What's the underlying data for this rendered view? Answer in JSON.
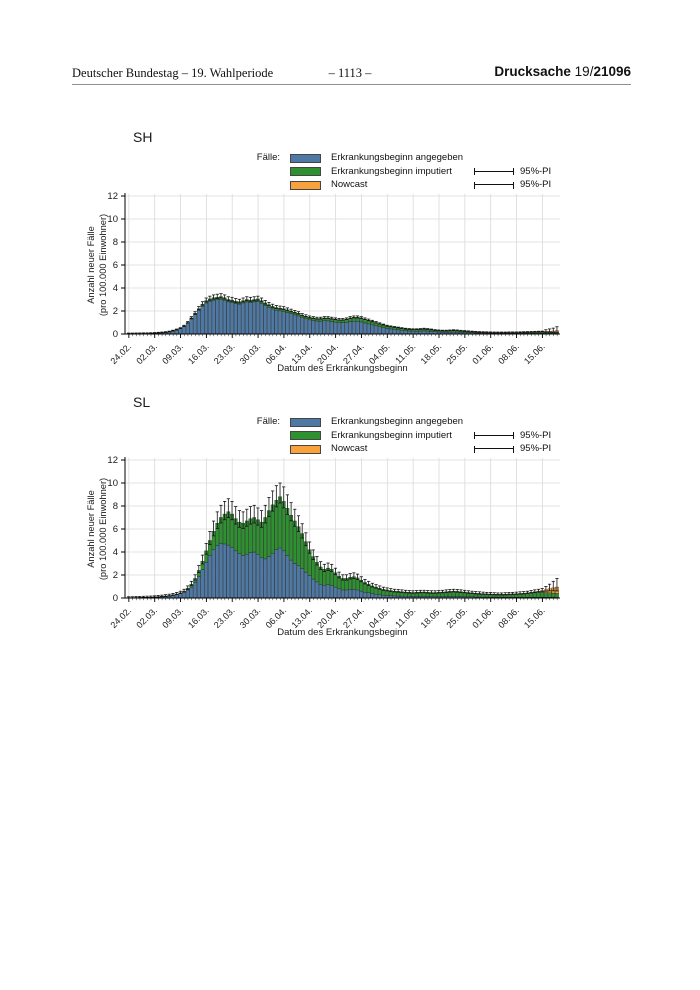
{
  "header": {
    "left": "Deutscher Bundestag – 19. Wahlperiode",
    "center": "– 1113 –",
    "right_label": "Drucksache",
    "right_term": "19/",
    "right_number": "21096"
  },
  "chart_data": [
    {
      "id": "SH",
      "title": "SH",
      "type": "bar",
      "legend": {
        "title": "Fälle:",
        "items": [
          {
            "key": "blue",
            "label": "Erkrankungsbeginn angegeben"
          },
          {
            "key": "green",
            "label": "Erkrankungsbeginn imputiert"
          },
          {
            "key": "orange",
            "label": "Nowcast"
          }
        ],
        "pi_label": "95%-PI"
      },
      "ylabel_line1": "Anzahl neuer Fälle",
      "ylabel_line2": "(pro 100.000 Einwohner)",
      "xlabel": "Datum des Erkrankungsbeginn",
      "ylim": [
        0,
        12
      ],
      "yticks": [
        0,
        2,
        4,
        6,
        8,
        10,
        12
      ],
      "xticks": {
        "labels": [
          "24.02.",
          "02.03.",
          "09.03.",
          "16.03.",
          "23.03.",
          "30.03.",
          "06.04.",
          "13.04.",
          "20.04.",
          "27.04.",
          "04.05.",
          "11.05.",
          "18.05.",
          "25.05.",
          "01.06.",
          "08.06.",
          "15.06."
        ],
        "day_index": [
          0,
          7,
          14,
          21,
          28,
          35,
          42,
          49,
          56,
          63,
          70,
          77,
          84,
          91,
          98,
          105,
          112
        ]
      },
      "colors": {
        "blue": "#4e79a4",
        "green": "#2e9130",
        "orange": "#f9a23b"
      },
      "series": {
        "blue": [
          0.03,
          0.03,
          0.04,
          0.04,
          0.05,
          0.05,
          0.06,
          0.07,
          0.09,
          0.11,
          0.14,
          0.19,
          0.26,
          0.35,
          0.46,
          0.65,
          0.93,
          1.3,
          1.67,
          2.05,
          2.42,
          2.7,
          2.84,
          2.93,
          2.98,
          3.02,
          2.93,
          2.79,
          2.74,
          2.65,
          2.6,
          2.7,
          2.79,
          2.74,
          2.79,
          2.82,
          2.67,
          2.47,
          2.32,
          2.18,
          2.07,
          2.01,
          1.96,
          1.86,
          1.76,
          1.66,
          1.57,
          1.42,
          1.33,
          1.23,
          1.18,
          1.13,
          1.12,
          1.15,
          1.14,
          1.09,
          1.04,
          0.99,
          0.98,
          1.01,
          1.08,
          1.11,
          1.1,
          1.05,
          0.96,
          0.88,
          0.79,
          0.71,
          0.63,
          0.55,
          0.48,
          0.44,
          0.4,
          0.36,
          0.32,
          0.29,
          0.26,
          0.25,
          0.24,
          0.25,
          0.27,
          0.25,
          0.22,
          0.19,
          0.17,
          0.16,
          0.15,
          0.16,
          0.17,
          0.16,
          0.14,
          0.13,
          0.11,
          0.1,
          0.09,
          0.08,
          0.08,
          0.07,
          0.07,
          0.06,
          0.06,
          0.06,
          0.06,
          0.06,
          0.06,
          0.06,
          0.06,
          0.07,
          0.07,
          0.07,
          0.08,
          0.08,
          0.08,
          0.08,
          0.08,
          0.08,
          0.08
        ],
        "green": [
          0.0,
          0.0,
          0.0,
          0.0,
          0.0,
          0.0,
          0.0,
          0.01,
          0.01,
          0.01,
          0.01,
          0.01,
          0.02,
          0.03,
          0.04,
          0.05,
          0.07,
          0.1,
          0.13,
          0.15,
          0.18,
          0.2,
          0.21,
          0.22,
          0.22,
          0.23,
          0.22,
          0.21,
          0.21,
          0.2,
          0.2,
          0.2,
          0.21,
          0.21,
          0.21,
          0.23,
          0.23,
          0.23,
          0.23,
          0.22,
          0.23,
          0.24,
          0.24,
          0.24,
          0.24,
          0.24,
          0.23,
          0.23,
          0.22,
          0.22,
          0.22,
          0.22,
          0.23,
          0.25,
          0.26,
          0.26,
          0.26,
          0.26,
          0.27,
          0.29,
          0.32,
          0.34,
          0.35,
          0.35,
          0.34,
          0.32,
          0.31,
          0.29,
          0.27,
          0.25,
          0.22,
          0.21,
          0.2,
          0.19,
          0.18,
          0.16,
          0.16,
          0.15,
          0.16,
          0.17,
          0.18,
          0.17,
          0.16,
          0.14,
          0.13,
          0.12,
          0.13,
          0.14,
          0.15,
          0.14,
          0.13,
          0.12,
          0.11,
          0.1,
          0.09,
          0.08,
          0.07,
          0.07,
          0.06,
          0.06,
          0.06,
          0.06,
          0.06,
          0.07,
          0.07,
          0.07,
          0.08,
          0.08,
          0.09,
          0.1,
          0.1,
          0.11,
          0.1,
          0.1,
          0.09,
          0.08,
          0.07
        ],
        "orange": [
          0,
          0,
          0,
          0,
          0,
          0,
          0,
          0,
          0,
          0,
          0,
          0,
          0,
          0,
          0,
          0,
          0,
          0,
          0,
          0,
          0,
          0,
          0,
          0,
          0,
          0,
          0,
          0,
          0,
          0,
          0,
          0,
          0,
          0,
          0,
          0,
          0,
          0,
          0,
          0,
          0,
          0,
          0,
          0,
          0,
          0,
          0,
          0,
          0,
          0,
          0,
          0,
          0,
          0,
          0,
          0,
          0,
          0,
          0,
          0,
          0,
          0,
          0,
          0,
          0,
          0,
          0,
          0,
          0,
          0,
          0,
          0,
          0,
          0,
          0,
          0,
          0,
          0,
          0,
          0,
          0,
          0,
          0,
          0,
          0,
          0,
          0,
          0,
          0,
          0,
          0,
          0,
          0,
          0,
          0,
          0,
          0,
          0,
          0,
          0,
          0,
          0,
          0,
          0,
          0,
          0,
          0,
          0,
          0,
          0,
          0,
          0,
          0.02,
          0.04,
          0.07,
          0.1,
          0.13
        ],
        "pi_upper": [
          0.08,
          0.08,
          0.09,
          0.09,
          0.1,
          0.1,
          0.11,
          0.13,
          0.15,
          0.17,
          0.2,
          0.25,
          0.33,
          0.43,
          0.55,
          0.76,
          1.08,
          1.51,
          1.94,
          2.38,
          2.81,
          3.13,
          3.29,
          3.4,
          3.46,
          3.51,
          3.4,
          3.24,
          3.19,
          3.08,
          3.02,
          3.13,
          3.24,
          3.19,
          3.24,
          3.29,
          3.13,
          2.92,
          2.75,
          2.59,
          2.48,
          2.43,
          2.38,
          2.27,
          2.16,
          2.05,
          1.94,
          1.78,
          1.67,
          1.57,
          1.51,
          1.46,
          1.46,
          1.51,
          1.51,
          1.46,
          1.4,
          1.35,
          1.35,
          1.4,
          1.51,
          1.57,
          1.57,
          1.51,
          1.4,
          1.3,
          1.19,
          1.08,
          0.97,
          0.86,
          0.76,
          0.7,
          0.65,
          0.6,
          0.55,
          0.5,
          0.47,
          0.45,
          0.45,
          0.47,
          0.5,
          0.47,
          0.43,
          0.38,
          0.35,
          0.33,
          0.33,
          0.35,
          0.37,
          0.35,
          0.32,
          0.3,
          0.27,
          0.25,
          0.23,
          0.21,
          0.2,
          0.19,
          0.18,
          0.17,
          0.17,
          0.17,
          0.17,
          0.18,
          0.18,
          0.18,
          0.19,
          0.2,
          0.21,
          0.22,
          0.23,
          0.24,
          0.25,
          0.37,
          0.44,
          0.51,
          0.63
        ]
      }
    },
    {
      "id": "SL",
      "title": "SL",
      "type": "bar",
      "legend": {
        "title": "Fälle:",
        "items": [
          {
            "key": "blue",
            "label": "Erkrankungsbeginn angegeben"
          },
          {
            "key": "green",
            "label": "Erkrankungsbeginn imputiert"
          },
          {
            "key": "orange",
            "label": "Nowcast"
          }
        ],
        "pi_label": "95%-PI"
      },
      "ylabel_line1": "Anzahl neuer Fälle",
      "ylabel_line2": "(pro 100.000 Einwohner)",
      "xlabel": "Datum des Erkrankungsbeginn",
      "ylim": [
        0,
        12
      ],
      "yticks": [
        0,
        2,
        4,
        6,
        8,
        10,
        12
      ],
      "xticks": {
        "labels": [
          "24.02.",
          "02.03.",
          "09.03.",
          "16.03.",
          "23.03.",
          "30.03.",
          "06.04.",
          "13.04.",
          "20.04.",
          "27.04.",
          "04.05.",
          "11.05.",
          "18.05.",
          "25.05.",
          "01.06.",
          "08.06.",
          "15.06."
        ],
        "day_index": [
          0,
          7,
          14,
          21,
          28,
          35,
          42,
          49,
          56,
          63,
          70,
          77,
          84,
          91,
          98,
          105,
          112
        ]
      },
      "colors": {
        "blue": "#4e79a4",
        "green": "#2e9130",
        "orange": "#f9a23b"
      },
      "series": {
        "blue": [
          0.03,
          0.03,
          0.03,
          0.04,
          0.05,
          0.06,
          0.07,
          0.08,
          0.1,
          0.12,
          0.15,
          0.18,
          0.23,
          0.29,
          0.37,
          0.5,
          0.7,
          0.95,
          1.35,
          1.85,
          2.45,
          3.1,
          3.7,
          4.2,
          4.55,
          4.75,
          4.7,
          4.6,
          4.4,
          4.1,
          3.85,
          3.7,
          3.8,
          3.95,
          4.0,
          3.8,
          3.5,
          3.4,
          3.6,
          3.9,
          4.2,
          4.35,
          4.1,
          3.7,
          3.3,
          3.0,
          2.8,
          2.55,
          2.25,
          1.95,
          1.65,
          1.4,
          1.2,
          1.1,
          1.15,
          1.1,
          0.95,
          0.8,
          0.7,
          0.7,
          0.75,
          0.75,
          0.7,
          0.6,
          0.5,
          0.45,
          0.38,
          0.33,
          0.28,
          0.25,
          0.22,
          0.2,
          0.18,
          0.17,
          0.16,
          0.15,
          0.14,
          0.13,
          0.13,
          0.13,
          0.13,
          0.12,
          0.12,
          0.12,
          0.12,
          0.12,
          0.13,
          0.13,
          0.13,
          0.12,
          0.12,
          0.11,
          0.1,
          0.1,
          0.09,
          0.09,
          0.08,
          0.08,
          0.08,
          0.07,
          0.07,
          0.07,
          0.07,
          0.07,
          0.07,
          0.07,
          0.07,
          0.07,
          0.07,
          0.07,
          0.07,
          0.07,
          0.07,
          0.07,
          0.06,
          0.06,
          0.05
        ],
        "green": [
          0.0,
          0.0,
          0.01,
          0.01,
          0.01,
          0.01,
          0.01,
          0.02,
          0.02,
          0.03,
          0.03,
          0.04,
          0.05,
          0.06,
          0.08,
          0.1,
          0.15,
          0.25,
          0.35,
          0.55,
          0.75,
          1.0,
          1.3,
          1.6,
          1.95,
          2.25,
          2.6,
          2.9,
          2.9,
          2.8,
          2.75,
          2.8,
          2.9,
          2.95,
          3.0,
          3.0,
          3.1,
          3.6,
          4.0,
          4.2,
          4.3,
          4.45,
          4.3,
          4.1,
          3.9,
          3.7,
          3.4,
          3.05,
          2.65,
          2.25,
          1.95,
          1.7,
          1.5,
          1.4,
          1.45,
          1.4,
          1.25,
          1.1,
          1.0,
          1.0,
          1.05,
          1.1,
          1.05,
          0.95,
          0.85,
          0.75,
          0.67,
          0.62,
          0.57,
          0.5,
          0.48,
          0.45,
          0.42,
          0.41,
          0.39,
          0.37,
          0.36,
          0.35,
          0.37,
          0.39,
          0.39,
          0.38,
          0.36,
          0.36,
          0.38,
          0.4,
          0.42,
          0.45,
          0.47,
          0.46,
          0.43,
          0.41,
          0.38,
          0.35,
          0.33,
          0.31,
          0.3,
          0.28,
          0.27,
          0.26,
          0.25,
          0.25,
          0.26,
          0.28,
          0.29,
          0.31,
          0.33,
          0.35,
          0.38,
          0.43,
          0.43,
          0.43,
          0.43,
          0.4,
          0.39,
          0.37,
          0.35
        ],
        "orange": [
          0,
          0,
          0,
          0,
          0,
          0,
          0,
          0,
          0,
          0,
          0,
          0,
          0,
          0,
          0,
          0,
          0,
          0,
          0,
          0,
          0,
          0,
          0,
          0,
          0,
          0,
          0,
          0,
          0,
          0,
          0,
          0,
          0,
          0,
          0,
          0,
          0,
          0,
          0,
          0,
          0,
          0,
          0,
          0,
          0,
          0,
          0,
          0,
          0,
          0,
          0,
          0,
          0,
          0,
          0,
          0,
          0,
          0,
          0,
          0,
          0,
          0,
          0,
          0,
          0,
          0,
          0,
          0,
          0,
          0,
          0,
          0,
          0,
          0,
          0,
          0,
          0,
          0,
          0,
          0,
          0,
          0,
          0,
          0,
          0,
          0,
          0,
          0,
          0,
          0,
          0,
          0,
          0,
          0,
          0,
          0,
          0,
          0,
          0,
          0,
          0,
          0,
          0,
          0,
          0,
          0,
          0,
          0,
          0,
          0,
          0.05,
          0.1,
          0.15,
          0.25,
          0.35,
          0.45,
          0.55
        ],
        "pi_upper": [
          0.11,
          0.11,
          0.13,
          0.14,
          0.15,
          0.16,
          0.17,
          0.19,
          0.22,
          0.25,
          0.29,
          0.33,
          0.4,
          0.48,
          0.59,
          0.76,
          1.05,
          1.45,
          2.02,
          2.82,
          3.73,
          4.75,
          5.78,
          6.69,
          7.49,
          8.06,
          8.4,
          8.63,
          8.4,
          7.95,
          7.6,
          7.49,
          7.72,
          7.95,
          8.06,
          7.83,
          7.6,
          8.06,
          8.74,
          9.31,
          9.77,
          10.0,
          9.66,
          8.97,
          8.29,
          7.72,
          7.15,
          6.46,
          5.67,
          4.87,
          4.18,
          3.61,
          3.16,
          2.93,
          3.04,
          2.93,
          2.59,
          2.25,
          2.02,
          2.02,
          2.13,
          2.19,
          2.08,
          1.85,
          1.62,
          1.45,
          1.28,
          1.16,
          1.05,
          0.94,
          0.88,
          0.82,
          0.76,
          0.74,
          0.71,
          0.67,
          0.65,
          0.63,
          0.65,
          0.67,
          0.67,
          0.65,
          0.63,
          0.63,
          0.65,
          0.67,
          0.71,
          0.74,
          0.76,
          0.74,
          0.71,
          0.67,
          0.63,
          0.59,
          0.56,
          0.54,
          0.51,
          0.49,
          0.48,
          0.46,
          0.44,
          0.44,
          0.46,
          0.48,
          0.49,
          0.51,
          0.54,
          0.56,
          0.59,
          0.65,
          0.71,
          0.76,
          0.82,
          1.0,
          1.2,
          1.45,
          1.7
        ]
      }
    }
  ]
}
